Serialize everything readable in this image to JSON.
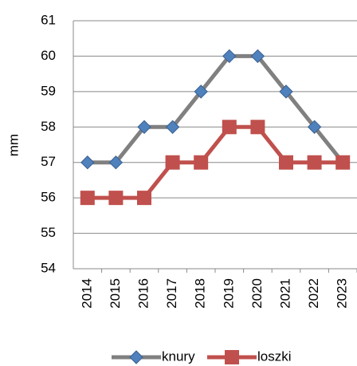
{
  "chart_data": {
    "type": "line",
    "y_label": "mm",
    "categories": [
      "2014",
      "2015",
      "2016",
      "2017",
      "2018",
      "2019",
      "2020",
      "2021",
      "2022",
      "2023"
    ],
    "series": [
      {
        "name": "knury",
        "color": "#808080",
        "marker": "diamond",
        "marker_color": "#4f81bd",
        "values": [
          57,
          57,
          58,
          58,
          59,
          60,
          60,
          59,
          58,
          57
        ]
      },
      {
        "name": "loszki",
        "color": "#c0504d",
        "marker": "square",
        "marker_color": "#c0504d",
        "values": [
          56,
          56,
          56,
          57,
          57,
          58,
          58,
          57,
          57,
          57
        ]
      }
    ],
    "ylim": [
      54,
      61
    ],
    "yticks": [
      54,
      55,
      56,
      57,
      58,
      59,
      60,
      61
    ],
    "grid": true,
    "legend": "bottom"
  }
}
